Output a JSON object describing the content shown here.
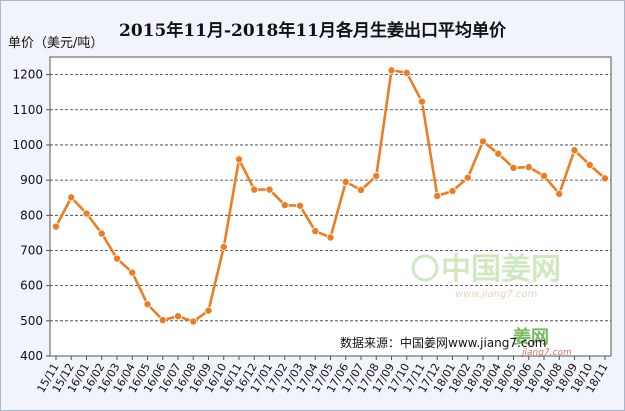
{
  "chart_data": {
    "type": "line",
    "title": "2015年11月-2018年11月各月生姜出口平均单价",
    "ylabel": "单价（美元/吨）",
    "ylim": [
      400,
      1250
    ],
    "yticks": [
      400,
      500,
      600,
      700,
      800,
      900,
      1000,
      1100,
      1200
    ],
    "grid": true,
    "color": "#ee7d22",
    "categories": [
      "15/11",
      "15/12",
      "16/01",
      "16/02",
      "16/03",
      "16/04",
      "16/05",
      "16/06",
      "16/07",
      "16/08",
      "16/09",
      "16/10",
      "16/11",
      "16/12",
      "17/01",
      "17/02",
      "17/03",
      "17/04",
      "17/05",
      "17/06",
      "17/07",
      "17/08",
      "17/09",
      "17/10",
      "17/11",
      "17/12",
      "18/01",
      "18/02",
      "18/03",
      "18/04",
      "18/05",
      "18/06",
      "18/07",
      "18/08",
      "18/09",
      "18/10",
      "18/11"
    ],
    "values": [
      768,
      851,
      805,
      748,
      677,
      637,
      547,
      502,
      513,
      498,
      529,
      710,
      959,
      873,
      873,
      829,
      827,
      755,
      737,
      895,
      872,
      912,
      1212,
      1205,
      1123,
      855,
      869,
      907,
      1010,
      975,
      935,
      937,
      912,
      861,
      985,
      943,
      905
    ]
  },
  "source": "数据来源：中国姜网www.jiang7.com",
  "watermark": {
    "logo_text": "中国姜网",
    "logo_url": "www.jiang7.com",
    "logo2_text": "姜网",
    "logo2_url": "jiang7.com"
  }
}
